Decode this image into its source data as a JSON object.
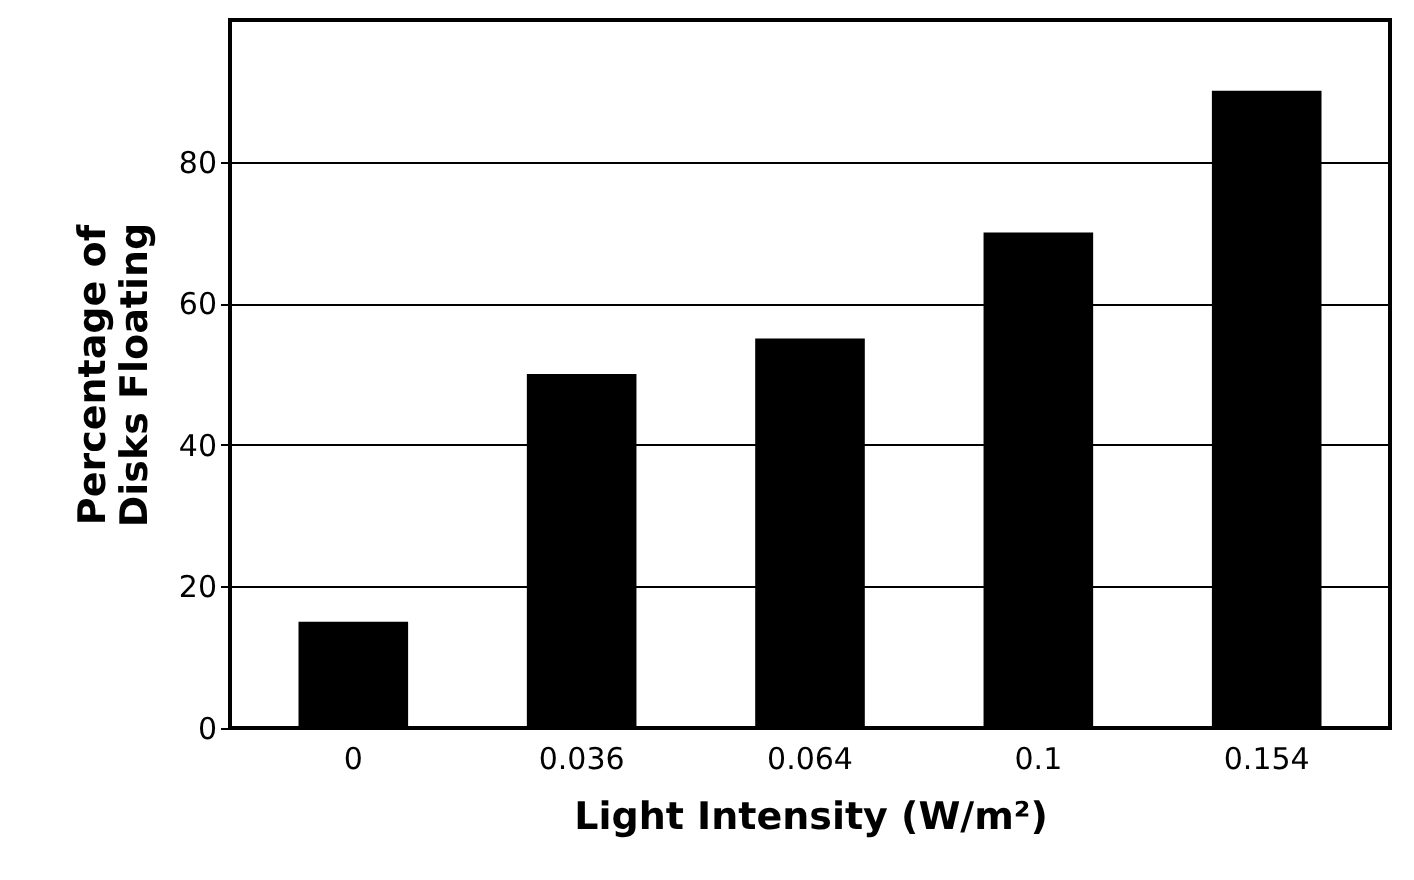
{
  "chart_data": {
    "type": "bar",
    "xlabel": "Light Intensity (W/m²)",
    "ylabel": "Percentage of\nDisks Floating",
    "categories": [
      "0",
      "0.036",
      "0.064",
      "0.1",
      "0.154"
    ],
    "values": [
      15,
      50,
      55,
      70,
      90
    ],
    "color": "#000000",
    "ylim": [
      0,
      100
    ],
    "yticks": [
      0,
      20,
      40,
      60,
      80
    ],
    "grid": "y"
  }
}
